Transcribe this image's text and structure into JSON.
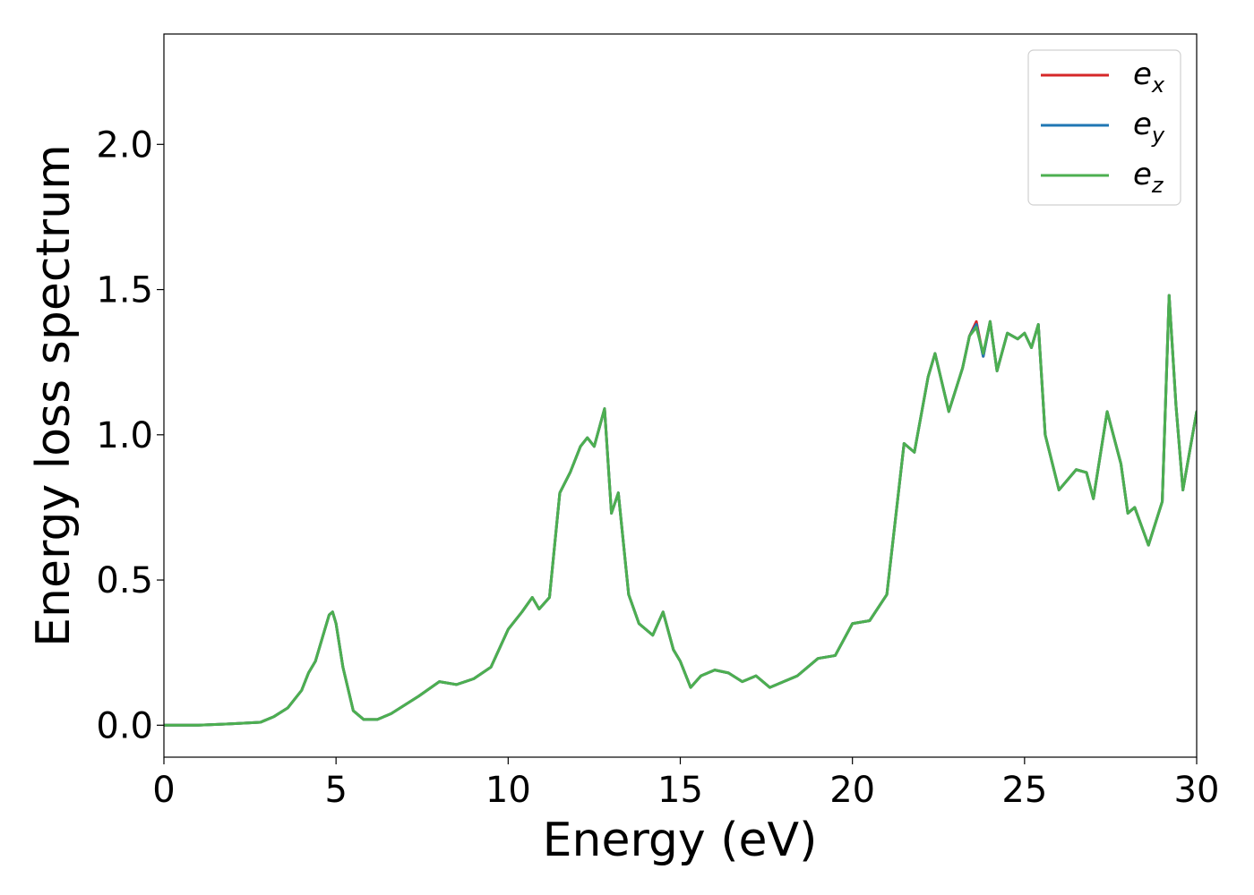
{
  "chart_data": {
    "type": "line",
    "title": "",
    "xlabel": "Energy (eV)",
    "ylabel": "Energy loss spectrum",
    "xlim": [
      0,
      30
    ],
    "ylim": [
      -0.11,
      2.38
    ],
    "xticks": [
      0,
      5,
      10,
      15,
      20,
      25,
      30
    ],
    "xtick_labels": [
      "0",
      "5",
      "10",
      "15",
      "20",
      "25",
      "30"
    ],
    "yticks": [
      0.0,
      0.5,
      1.0,
      1.5,
      2.0
    ],
    "ytick_labels": [
      "0.0",
      "0.5",
      "1.0",
      "1.5",
      "2.0"
    ],
    "grid": false,
    "legend_position": "top-right",
    "colors": {
      "e_x": "#d62728",
      "e_y": "#1f77b4",
      "e_z": "#4caf50"
    },
    "series": [
      {
        "name": "e_x",
        "legend_main": "e",
        "legend_sub": "x",
        "color": "#d62728",
        "x": [
          0,
          1,
          2,
          2.8,
          3.2,
          3.6,
          4.0,
          4.2,
          4.4,
          4.6,
          4.8,
          4.9,
          5.0,
          5.2,
          5.5,
          5.8,
          6.2,
          6.6,
          7.0,
          7.4,
          8.0,
          8.5,
          9.0,
          9.5,
          10.0,
          10.4,
          10.7,
          10.9,
          11.2,
          11.5,
          11.8,
          12.1,
          12.3,
          12.5,
          12.8,
          13.0,
          13.2,
          13.5,
          13.8,
          14.2,
          14.5,
          14.8,
          15.0,
          15.3,
          15.6,
          16.0,
          16.4,
          16.8,
          17.2,
          17.6,
          18.0,
          18.4,
          19.0,
          19.5,
          20.0,
          20.5,
          21.0,
          21.5,
          21.8,
          22.2,
          22.4,
          22.8,
          23.2,
          23.4,
          23.6,
          23.8,
          24.0,
          24.2,
          24.5,
          24.8,
          25.0,
          25.2,
          25.4,
          25.6,
          26.0,
          26.5,
          26.8,
          27.0,
          27.4,
          27.8,
          28.0,
          28.2,
          28.6,
          29.0,
          29.2,
          29.4,
          29.6,
          30.0
        ],
        "y": [
          0.0,
          0.0,
          0.005,
          0.01,
          0.03,
          0.06,
          0.12,
          0.18,
          0.22,
          0.3,
          0.38,
          0.39,
          0.35,
          0.2,
          0.05,
          0.02,
          0.02,
          0.04,
          0.07,
          0.1,
          0.15,
          0.14,
          0.16,
          0.2,
          0.33,
          0.39,
          0.44,
          0.4,
          0.44,
          0.8,
          0.87,
          0.96,
          0.99,
          0.96,
          1.09,
          0.73,
          0.8,
          0.45,
          0.35,
          0.31,
          0.39,
          0.26,
          0.22,
          0.13,
          0.17,
          0.19,
          0.18,
          0.15,
          0.17,
          0.13,
          0.15,
          0.17,
          0.23,
          0.24,
          0.35,
          0.36,
          0.45,
          0.97,
          0.94,
          1.2,
          1.28,
          1.08,
          1.23,
          1.34,
          1.39,
          1.27,
          1.39,
          1.22,
          1.35,
          1.33,
          1.35,
          1.3,
          1.38,
          1.0,
          0.81,
          0.88,
          0.87,
          0.78,
          1.08,
          0.9,
          0.73,
          0.75,
          0.62,
          0.77,
          1.48,
          1.1,
          0.81,
          1.08
        ]
      },
      {
        "name": "e_y",
        "legend_main": "e",
        "legend_sub": "y",
        "color": "#1f77b4",
        "x": [
          0,
          1,
          2,
          2.8,
          3.2,
          3.6,
          4.0,
          4.2,
          4.4,
          4.6,
          4.8,
          4.9,
          5.0,
          5.2,
          5.5,
          5.8,
          6.2,
          6.6,
          7.0,
          7.4,
          8.0,
          8.5,
          9.0,
          9.5,
          10.0,
          10.4,
          10.7,
          10.9,
          11.2,
          11.5,
          11.8,
          12.1,
          12.3,
          12.5,
          12.8,
          13.0,
          13.2,
          13.5,
          13.8,
          14.2,
          14.5,
          14.8,
          15.0,
          15.3,
          15.6,
          16.0,
          16.4,
          16.8,
          17.2,
          17.6,
          18.0,
          18.4,
          19.0,
          19.5,
          20.0,
          20.5,
          21.0,
          21.5,
          21.8,
          22.2,
          22.4,
          22.8,
          23.2,
          23.4,
          23.6,
          23.8,
          24.0,
          24.2,
          24.5,
          24.8,
          25.0,
          25.2,
          25.4,
          25.6,
          26.0,
          26.5,
          26.8,
          27.0,
          27.4,
          27.8,
          28.0,
          28.2,
          28.6,
          29.0,
          29.2,
          29.4,
          29.6,
          30.0
        ],
        "y": [
          0.0,
          0.0,
          0.005,
          0.01,
          0.03,
          0.06,
          0.12,
          0.18,
          0.22,
          0.3,
          0.38,
          0.39,
          0.35,
          0.2,
          0.05,
          0.02,
          0.02,
          0.04,
          0.07,
          0.1,
          0.15,
          0.14,
          0.16,
          0.2,
          0.33,
          0.39,
          0.44,
          0.4,
          0.44,
          0.8,
          0.87,
          0.96,
          0.99,
          0.96,
          1.09,
          0.73,
          0.8,
          0.45,
          0.35,
          0.31,
          0.39,
          0.26,
          0.22,
          0.13,
          0.17,
          0.19,
          0.18,
          0.15,
          0.17,
          0.13,
          0.15,
          0.17,
          0.23,
          0.24,
          0.35,
          0.36,
          0.45,
          0.97,
          0.94,
          1.2,
          1.28,
          1.08,
          1.23,
          1.34,
          1.38,
          1.27,
          1.39,
          1.22,
          1.35,
          1.33,
          1.35,
          1.3,
          1.38,
          1.0,
          0.81,
          0.88,
          0.87,
          0.78,
          1.08,
          0.9,
          0.73,
          0.75,
          0.62,
          0.77,
          1.48,
          1.1,
          0.81,
          1.08
        ]
      },
      {
        "name": "e_z",
        "legend_main": "e",
        "legend_sub": "z",
        "color": "#4caf50",
        "x": [
          0,
          1,
          2,
          2.8,
          3.2,
          3.6,
          4.0,
          4.2,
          4.4,
          4.6,
          4.8,
          4.9,
          5.0,
          5.2,
          5.5,
          5.8,
          6.2,
          6.6,
          7.0,
          7.4,
          8.0,
          8.5,
          9.0,
          9.5,
          10.0,
          10.4,
          10.7,
          10.9,
          11.2,
          11.5,
          11.8,
          12.1,
          12.3,
          12.5,
          12.8,
          13.0,
          13.2,
          13.5,
          13.8,
          14.2,
          14.5,
          14.8,
          15.0,
          15.3,
          15.6,
          16.0,
          16.4,
          16.8,
          17.2,
          17.6,
          18.0,
          18.4,
          19.0,
          19.5,
          20.0,
          20.5,
          21.0,
          21.5,
          21.8,
          22.2,
          22.4,
          22.8,
          23.2,
          23.4,
          23.6,
          23.8,
          24.0,
          24.2,
          24.5,
          24.8,
          25.0,
          25.2,
          25.4,
          25.6,
          26.0,
          26.5,
          26.8,
          27.0,
          27.4,
          27.8,
          28.0,
          28.2,
          28.6,
          29.0,
          29.2,
          29.4,
          29.6,
          30.0
        ],
        "y": [
          0.0,
          0.0,
          0.005,
          0.01,
          0.03,
          0.06,
          0.12,
          0.18,
          0.22,
          0.3,
          0.38,
          0.39,
          0.35,
          0.2,
          0.05,
          0.02,
          0.02,
          0.04,
          0.07,
          0.1,
          0.15,
          0.14,
          0.16,
          0.2,
          0.33,
          0.39,
          0.44,
          0.4,
          0.44,
          0.8,
          0.87,
          0.96,
          0.99,
          0.96,
          1.09,
          0.73,
          0.8,
          0.45,
          0.35,
          0.31,
          0.39,
          0.26,
          0.22,
          0.13,
          0.17,
          0.19,
          0.18,
          0.15,
          0.17,
          0.13,
          0.15,
          0.17,
          0.23,
          0.24,
          0.35,
          0.36,
          0.45,
          0.97,
          0.94,
          1.2,
          1.28,
          1.08,
          1.23,
          1.34,
          1.37,
          1.28,
          1.39,
          1.22,
          1.35,
          1.33,
          1.35,
          1.3,
          1.38,
          1.0,
          0.81,
          0.88,
          0.87,
          0.78,
          1.08,
          0.9,
          0.73,
          0.75,
          0.62,
          0.77,
          1.48,
          1.1,
          0.81,
          1.08
        ]
      }
    ]
  }
}
